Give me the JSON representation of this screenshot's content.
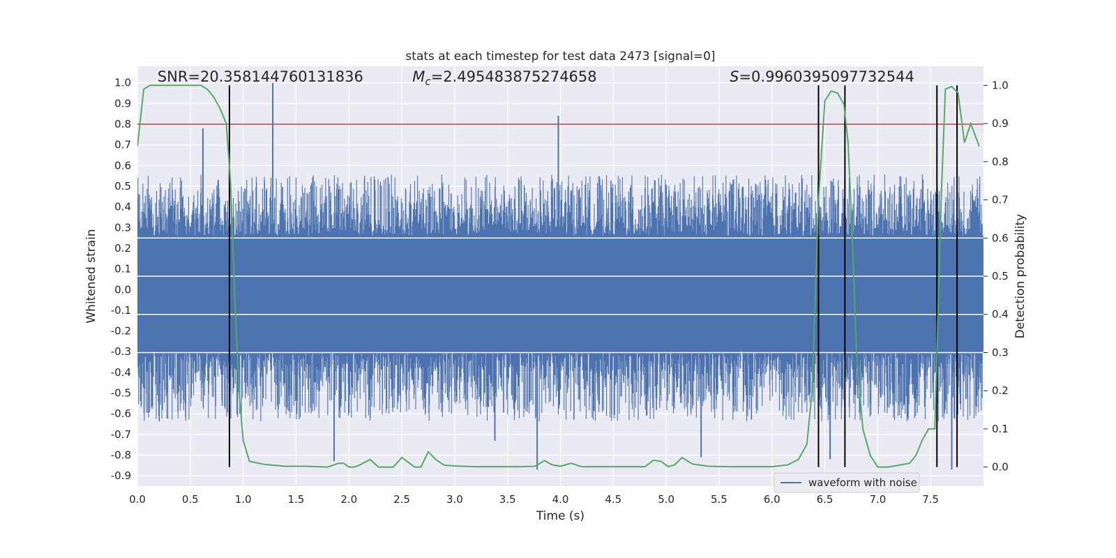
{
  "chart_data": {
    "type": "line",
    "title": "stats at each timestep for test data 2473 [signal=0]",
    "xlabel": "Time (s)",
    "ylabel": "Whitened strain",
    "y2label": "Detection probability",
    "xlim": [
      0.0,
      8.0
    ],
    "ylim": [
      -0.95,
      1.08
    ],
    "y2lim": [
      -0.05,
      1.05
    ],
    "x_ticks": [
      "0.0",
      "0.5",
      "1.0",
      "1.5",
      "2.0",
      "2.5",
      "3.0",
      "3.5",
      "4.0",
      "4.5",
      "5.0",
      "5.5",
      "6.0",
      "6.5",
      "7.0",
      "7.5"
    ],
    "y_ticks": [
      "1.0",
      "0.9",
      "0.8",
      "0.7",
      "0.6",
      "0.5",
      "0.4",
      "0.3",
      "0.2",
      "0.1",
      "0.0",
      "-0.1",
      "-0.2",
      "-0.3",
      "-0.4",
      "-0.5",
      "-0.6",
      "-0.7",
      "-0.8",
      "-0.9"
    ],
    "y2_ticks": [
      "1.0",
      "0.9",
      "0.8",
      "0.7",
      "0.6",
      "0.5",
      "0.4",
      "0.3",
      "0.2",
      "0.1",
      "0.0"
    ],
    "series": [
      {
        "name": "waveform with noise",
        "color": "#4c72b0",
        "kind": "noise-envelope",
        "core_range": [
          -0.3,
          0.26
        ],
        "typical_peaks": [
          -0.55,
          0.48
        ],
        "spikes": [
          {
            "x": 0.62,
            "y": 0.78
          },
          {
            "x": 1.28,
            "y": 1.0
          },
          {
            "x": 1.86,
            "y": -0.83
          },
          {
            "x": 3.38,
            "y": -0.73
          },
          {
            "x": 3.78,
            "y": -0.87
          },
          {
            "x": 3.98,
            "y": 0.84
          },
          {
            "x": 5.33,
            "y": -0.81
          },
          {
            "x": 6.44,
            "y": 0.79
          },
          {
            "x": 6.55,
            "y": -0.82
          },
          {
            "x": 7.7,
            "y": -0.87
          }
        ]
      },
      {
        "name": "detection probability",
        "color": "#55a868",
        "axis": "right",
        "x": [
          0.0,
          0.06,
          0.12,
          0.2,
          0.3,
          0.4,
          0.5,
          0.6,
          0.66,
          0.72,
          0.78,
          0.84,
          0.88,
          0.92,
          0.96,
          1.0,
          1.06,
          1.2,
          1.4,
          1.6,
          1.8,
          1.9,
          1.95,
          2.0,
          2.05,
          2.1,
          2.2,
          2.28,
          2.35,
          2.42,
          2.5,
          2.55,
          2.62,
          2.68,
          2.75,
          2.82,
          2.9,
          3.0,
          3.2,
          3.4,
          3.6,
          3.76,
          3.85,
          3.92,
          4.0,
          4.1,
          4.2,
          4.4,
          4.6,
          4.8,
          4.88,
          4.95,
          5.02,
          5.08,
          5.15,
          5.25,
          5.4,
          5.6,
          5.8,
          6.0,
          6.15,
          6.25,
          6.33,
          6.38,
          6.44,
          6.5,
          6.56,
          6.62,
          6.68,
          6.72,
          6.76,
          6.8,
          6.86,
          6.93,
          7.0,
          7.1,
          7.2,
          7.3,
          7.36,
          7.42,
          7.48,
          7.54,
          7.6,
          7.64,
          7.7,
          7.76,
          7.82,
          7.88,
          7.96
        ],
        "values": [
          0.84,
          0.99,
          1.0,
          1.0,
          1.0,
          1.0,
          1.0,
          1.0,
          0.99,
          0.97,
          0.94,
          0.9,
          0.75,
          0.45,
          0.2,
          0.07,
          0.015,
          0.007,
          0.002,
          0.002,
          0.0,
          0.01,
          0.01,
          0.0,
          0.0,
          0.005,
          0.02,
          0.0,
          0.0,
          0.0,
          0.025,
          0.015,
          0.0,
          0.0,
          0.04,
          0.02,
          0.005,
          0.003,
          0.001,
          0.001,
          0.001,
          0.002,
          0.017,
          0.006,
          0.002,
          0.01,
          0.001,
          0.001,
          0.001,
          0.001,
          0.018,
          0.015,
          0.001,
          0.006,
          0.025,
          0.008,
          0.002,
          0.001,
          0.001,
          0.001,
          0.006,
          0.02,
          0.06,
          0.2,
          0.7,
          0.96,
          0.985,
          0.98,
          0.95,
          0.85,
          0.6,
          0.3,
          0.1,
          0.03,
          0.0,
          0.0,
          0.005,
          0.01,
          0.03,
          0.07,
          0.1,
          0.1,
          0.7,
          0.99,
          0.997,
          0.98,
          0.85,
          0.9,
          0.84
        ]
      }
    ],
    "threshold_line": {
      "value": 0.8,
      "color": "#c44e52"
    },
    "vertical_markers": [
      0.87,
      6.44,
      6.69,
      7.56,
      7.75
    ],
    "annotations": [
      {
        "text": "SNR=20.358144760131836",
        "x": 0.19,
        "y": 1.03
      },
      {
        "text": "=2.495483875274658",
        "math": "M_c",
        "x": 2.6,
        "y": 1.03
      },
      {
        "text": "=0.9960395097732544",
        "math": "S",
        "x": 5.6,
        "y": 1.03
      }
    ],
    "legend": {
      "position": "bottom-right",
      "entries": [
        {
          "label": "waveform with noise",
          "color": "#4c72b0"
        }
      ]
    },
    "grid": true,
    "colors": {
      "plot_bg": "#eaeaf2",
      "grid": "#ffffff",
      "blue": "#4c72b0",
      "green": "#55a868",
      "red": "#c44e52",
      "marker": "#000000"
    }
  }
}
